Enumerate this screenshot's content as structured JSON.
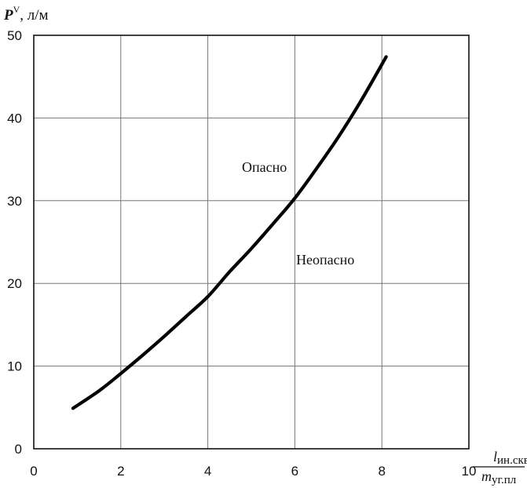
{
  "chart_data": {
    "type": "line",
    "title": "",
    "ylabel_main": "P",
    "ylabel_sup": "V",
    "ylabel_unit": ", л/м",
    "xlabel_num_var": "l",
    "xlabel_num_sub": "ин.скв",
    "xlabel_den_var": "m",
    "xlabel_den_sub": "уг.пл",
    "xlim": [
      0,
      10
    ],
    "ylim": [
      0,
      50
    ],
    "xticks": [
      "0",
      "2",
      "4",
      "6",
      "8",
      "10"
    ],
    "yticks": [
      "0",
      "10",
      "20",
      "30",
      "40",
      "50"
    ],
    "grid": true,
    "annotations": [
      {
        "text": "Опасно",
        "x": 5.3,
        "y": 33.5
      },
      {
        "text": "Неопасно",
        "x": 6.7,
        "y": 22.3
      }
    ],
    "series": [
      {
        "x": [
          0.9,
          1.5,
          2.0,
          2.5,
          3.0,
          3.5,
          4.0,
          4.5,
          5.0,
          5.5,
          6.0,
          6.5,
          7.0,
          7.5,
          8.1
        ],
        "y": [
          4.9,
          7.0,
          9.1,
          11.3,
          13.6,
          16.0,
          18.4,
          21.4,
          24.2,
          27.2,
          30.3,
          33.9,
          37.7,
          41.9,
          47.4
        ]
      }
    ]
  }
}
